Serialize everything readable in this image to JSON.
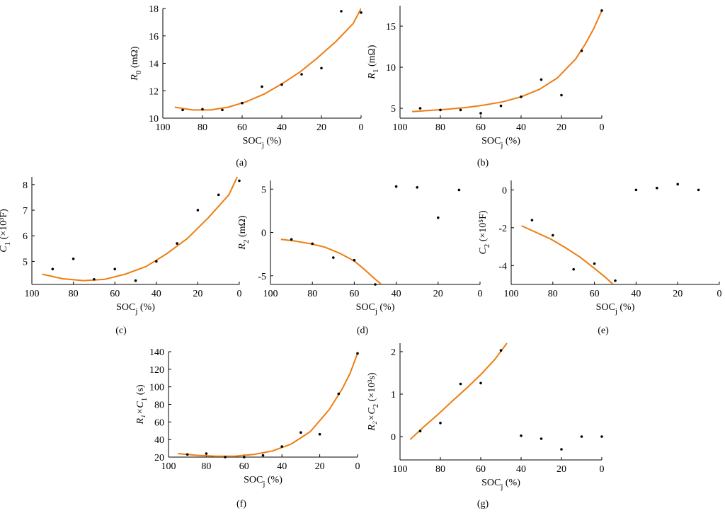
{
  "colors": {
    "fit": "#ee7d11",
    "points": "#000000",
    "axes": "#000000"
  },
  "chart_data": [
    {
      "id": "a",
      "type": "scatter",
      "caption": "(a)",
      "title": "",
      "xlabel": "SOC",
      "xlabel_sub": "j",
      "xlabel_suffix": " (%)",
      "ylabel_main": "R",
      "ylabel_sub": "0",
      "ylabel_sup": "",
      "ylabel_suffix": " (mΩ)",
      "xlim": [
        100,
        0
      ],
      "ylim": [
        10,
        18
      ],
      "xticks": [
        100,
        80,
        60,
        40,
        20,
        0
      ],
      "yticks": [
        10,
        12,
        14,
        16,
        18
      ],
      "points": {
        "x": [
          90,
          80,
          70,
          60,
          50,
          40,
          30,
          20,
          10,
          0
        ],
        "y": [
          10.6,
          10.65,
          10.6,
          11.1,
          12.3,
          12.45,
          13.2,
          13.65,
          17.8,
          17.7
        ]
      },
      "fit": {
        "x": [
          94,
          85,
          76,
          67,
          58,
          49,
          40,
          31,
          22,
          13,
          4,
          0
        ],
        "y": [
          10.8,
          10.6,
          10.6,
          10.8,
          11.2,
          11.75,
          12.5,
          13.35,
          14.4,
          15.55,
          16.9,
          18.0
        ]
      }
    },
    {
      "id": "b",
      "type": "scatter",
      "caption": "(b)",
      "title": "",
      "xlabel": "SOC",
      "xlabel_sub": "j",
      "xlabel_suffix": " (%)",
      "ylabel_main": "R",
      "ylabel_sub": "1",
      "ylabel_sup": "",
      "ylabel_suffix": " (mΩ)",
      "xlim": [
        100,
        0
      ],
      "ylim": [
        3.8,
        17.5
      ],
      "xticks": [
        100,
        80,
        60,
        40,
        20,
        0
      ],
      "yticks": [
        5,
        10,
        15
      ],
      "points": {
        "x": [
          90,
          80,
          70,
          60,
          50,
          40,
          30,
          20,
          10,
          0
        ],
        "y": [
          5.0,
          4.8,
          4.8,
          4.4,
          5.3,
          6.4,
          8.5,
          6.6,
          12.0,
          16.9
        ]
      },
      "fit": {
        "x": [
          94,
          85,
          76,
          67,
          58,
          49,
          40,
          31,
          22,
          13,
          8,
          4,
          0
        ],
        "y": [
          4.6,
          4.75,
          4.9,
          5.1,
          5.4,
          5.8,
          6.4,
          7.3,
          8.7,
          11.0,
          12.9,
          14.7,
          16.9
        ]
      }
    },
    {
      "id": "c",
      "type": "scatter",
      "caption": "(c)",
      "title": "",
      "xlabel": "SOC",
      "xlabel_sub": "j",
      "xlabel_suffix": " (%)",
      "ylabel_main": "C",
      "ylabel_sub": "1",
      "ylabel_sup": "3",
      "ylabel_suffix": " (×10³F)",
      "xlim": [
        100,
        0
      ],
      "ylim": [
        4.1,
        8.3
      ],
      "xticks": [
        100,
        80,
        60,
        40,
        20,
        0
      ],
      "yticks": [
        5,
        6,
        7,
        8
      ],
      "points": {
        "x": [
          90,
          80,
          70,
          60,
          50,
          40,
          30,
          20,
          10,
          0
        ],
        "y": [
          4.7,
          5.1,
          4.3,
          4.7,
          4.25,
          5.0,
          5.7,
          7.0,
          7.6,
          8.15
        ]
      },
      "fit": {
        "x": [
          95,
          85,
          75,
          65,
          55,
          45,
          35,
          25,
          15,
          5,
          1
        ],
        "y": [
          4.5,
          4.32,
          4.25,
          4.3,
          4.5,
          4.8,
          5.3,
          5.9,
          6.7,
          7.6,
          8.3
        ]
      }
    },
    {
      "id": "d",
      "type": "scatter",
      "caption": "(d)",
      "title": "",
      "xlabel": "SOC",
      "xlabel_sub": "j",
      "xlabel_suffix": " (%)",
      "ylabel_main": "R",
      "ylabel_sub": "2",
      "ylabel_sup": "",
      "ylabel_suffix": " (mΩ)",
      "xlim": [
        100,
        0
      ],
      "ylim": [
        -6,
        6
      ],
      "xticks": [
        100,
        80,
        60,
        40,
        20,
        0
      ],
      "yticks": [
        -5,
        0,
        5
      ],
      "points": {
        "x": [
          90,
          80,
          70,
          60,
          50,
          40,
          30,
          20,
          10
        ],
        "y": [
          -0.8,
          -1.3,
          -2.9,
          -3.2,
          -6.0,
          5.3,
          5.2,
          1.7,
          4.9
        ]
      },
      "fit": {
        "x": [
          95,
          88,
          81,
          74,
          67,
          60,
          55,
          50,
          47
        ],
        "y": [
          -0.8,
          -1.0,
          -1.3,
          -1.7,
          -2.4,
          -3.3,
          -4.3,
          -5.4,
          -6.0
        ]
      }
    },
    {
      "id": "e",
      "type": "scatter",
      "caption": "(e)",
      "title": "",
      "xlabel": "SOC",
      "xlabel_sub": "j",
      "xlabel_suffix": " (%)",
      "ylabel_main": "C",
      "ylabel_sub": "2",
      "ylabel_sup": "5",
      "ylabel_suffix": " (×10⁵F)",
      "xlim": [
        100,
        0
      ],
      "ylim": [
        -5,
        0.5
      ],
      "xticks": [
        100,
        80,
        60,
        40,
        20,
        0
      ],
      "yticks": [
        -4,
        -2,
        0
      ],
      "points": {
        "x": [
          90,
          80,
          70,
          60,
          50,
          40,
          30,
          20,
          10
        ],
        "y": [
          -1.6,
          -2.4,
          -4.2,
          -3.9,
          -4.8,
          0.0,
          0.1,
          0.3,
          0.0
        ]
      },
      "fit": {
        "x": [
          95,
          88,
          81,
          74,
          67,
          60,
          55,
          51
        ],
        "y": [
          -1.9,
          -2.25,
          -2.6,
          -3.05,
          -3.55,
          -4.15,
          -4.6,
          -5.0
        ]
      }
    },
    {
      "id": "f",
      "type": "scatter",
      "caption": "(f)",
      "title": "",
      "xlabel": "SOC",
      "xlabel_sub": "j",
      "xlabel_suffix": " (%)",
      "ylabel_main": "R₁×C",
      "ylabel_sub": "1",
      "ylabel_sup": "",
      "ylabel_suffix": " (s)",
      "xlim": [
        100,
        0
      ],
      "ylim": [
        20,
        140
      ],
      "xticks": [
        100,
        80,
        60,
        40,
        20,
        0
      ],
      "yticks": [
        20,
        40,
        60,
        80,
        100,
        120,
        140
      ],
      "points": {
        "x": [
          90,
          80,
          70,
          60,
          50,
          40,
          30,
          20,
          10,
          0
        ],
        "y": [
          23,
          24,
          20,
          20,
          22,
          32,
          48,
          46,
          92,
          138
        ]
      },
      "fit": {
        "x": [
          95,
          85,
          75,
          65,
          55,
          45,
          35,
          25,
          15,
          8,
          4,
          0
        ],
        "y": [
          24,
          22,
          21,
          21,
          23,
          27,
          35,
          49,
          74,
          98,
          115,
          138
        ]
      }
    },
    {
      "id": "g",
      "type": "scatter",
      "caption": "(g)",
      "title": "",
      "xlabel": "SOC",
      "xlabel_sub": "j",
      "xlabel_suffix": " (%)",
      "ylabel_main": "R₂×C",
      "ylabel_sub": "2",
      "ylabel_sup": "3",
      "ylabel_suffix": " (×10³s)",
      "xlim": [
        100,
        0
      ],
      "ylim": [
        -0.55,
        2.2
      ],
      "xticks": [
        100,
        80,
        60,
        40,
        20,
        0
      ],
      "yticks": [
        0,
        1,
        2
      ],
      "points": {
        "x": [
          90,
          80,
          70,
          60,
          50,
          40,
          30,
          20,
          10,
          0
        ],
        "y": [
          0.13,
          0.32,
          1.24,
          1.26,
          2.03,
          0.02,
          -0.05,
          -0.3,
          0.0,
          0.0
        ]
      },
      "fit": {
        "x": [
          95,
          88,
          81,
          74,
          67,
          60,
          53,
          47
        ],
        "y": [
          -0.07,
          0.24,
          0.53,
          0.84,
          1.14,
          1.46,
          1.82,
          2.2
        ]
      }
    }
  ]
}
